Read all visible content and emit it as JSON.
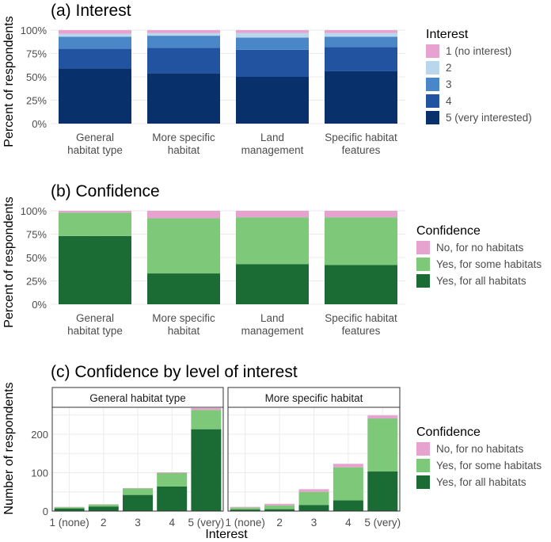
{
  "chart_data": [
    {
      "type": "bar",
      "stacked": true,
      "percent": true,
      "title": "(a) Interest",
      "ylabel": "Percent of respondents",
      "xlabel": "",
      "ylim": [
        0,
        100
      ],
      "yticks": [
        "0%",
        "25%",
        "50%",
        "75%",
        "100%"
      ],
      "categories": [
        [
          "General",
          "habitat type"
        ],
        [
          "More specific",
          "habitat"
        ],
        [
          "Land",
          "management"
        ],
        [
          "Specific habitat",
          "features"
        ]
      ],
      "legend_title": "Interest",
      "legend_position": "right",
      "series": [
        {
          "name": "5 (very interested)",
          "color": "#08306b",
          "values": [
            59,
            54,
            50,
            56
          ]
        },
        {
          "name": "4",
          "color": "#2253a0",
          "values": [
            21,
            27,
            29,
            26
          ]
        },
        {
          "name": "3",
          "color": "#4a87c8",
          "values": [
            13,
            13,
            13,
            11
          ]
        },
        {
          "name": "2",
          "color": "#b9d6ec",
          "values": [
            3,
            3,
            5,
            4
          ]
        },
        {
          "name": "1 (no interest)",
          "color": "#e6a3cf",
          "values": [
            4,
            3,
            3,
            3
          ]
        }
      ],
      "legend_order": [
        4,
        3,
        2,
        1,
        0
      ]
    },
    {
      "type": "bar",
      "stacked": true,
      "percent": true,
      "title": "(b) Confidence",
      "ylabel": "Percent of respondents",
      "xlabel": "",
      "ylim": [
        0,
        100
      ],
      "yticks": [
        "0%",
        "25%",
        "50%",
        "75%",
        "100%"
      ],
      "categories": [
        [
          "General",
          "habitat type"
        ],
        [
          "More specific",
          "habitat"
        ],
        [
          "Land",
          "management"
        ],
        [
          "Specific habitat",
          "features"
        ]
      ],
      "legend_title": "Confidence",
      "legend_position": "right",
      "series": [
        {
          "name": "Yes, for all habitats",
          "color": "#1b6b35",
          "values": [
            73,
            33,
            43,
            42
          ]
        },
        {
          "name": "Yes, for some habitats",
          "color": "#7ec87a",
          "values": [
            25,
            59,
            50,
            51
          ]
        },
        {
          "name": "No, for no habitats",
          "color": "#e6a3cf",
          "values": [
            2,
            8,
            7,
            7
          ]
        }
      ],
      "legend_order": [
        2,
        1,
        0
      ]
    },
    {
      "type": "bar",
      "stacked": true,
      "title": "(c) Confidence by level of interest",
      "ylabel": "Number of respondents",
      "xlabel": "Interest",
      "ylim": [
        0,
        270
      ],
      "yticks": [
        0,
        100,
        200
      ],
      "categories": [
        "1 (none)",
        "2",
        "3",
        "4",
        "5 (very)"
      ],
      "legend_title": "Confidence",
      "legend_position": "right",
      "facets": [
        {
          "strip": "General habitat type",
          "series": [
            {
              "name": "Yes, for all habitats",
              "color": "#1b6b35",
              "values": [
                7,
                12,
                42,
                64,
                213
              ]
            },
            {
              "name": "Yes, for some habitats",
              "color": "#7ec87a",
              "values": [
                3,
                5,
                17,
                35,
                50
              ]
            },
            {
              "name": "No, for no habitats",
              "color": "#e6a3cf",
              "values": [
                1,
                1,
                1,
                2,
                5
              ]
            }
          ]
        },
        {
          "strip": "More specific habitat",
          "series": [
            {
              "name": "Yes, for all habitats",
              "color": "#1b6b35",
              "values": [
                4,
                5,
                16,
                28,
                103
              ]
            },
            {
              "name": "Yes, for some habitats",
              "color": "#7ec87a",
              "values": [
                5,
                10,
                34,
                86,
                138
              ]
            },
            {
              "name": "No, for no habitats",
              "color": "#e6a3cf",
              "values": [
                2,
                4,
                7,
                9,
                8
              ]
            }
          ]
        }
      ],
      "legend": [
        {
          "name": "No, for no habitats",
          "color": "#e6a3cf"
        },
        {
          "name": "Yes, for some habitats",
          "color": "#7ec87a"
        },
        {
          "name": "Yes, for all habitats",
          "color": "#1b6b35"
        }
      ]
    }
  ]
}
